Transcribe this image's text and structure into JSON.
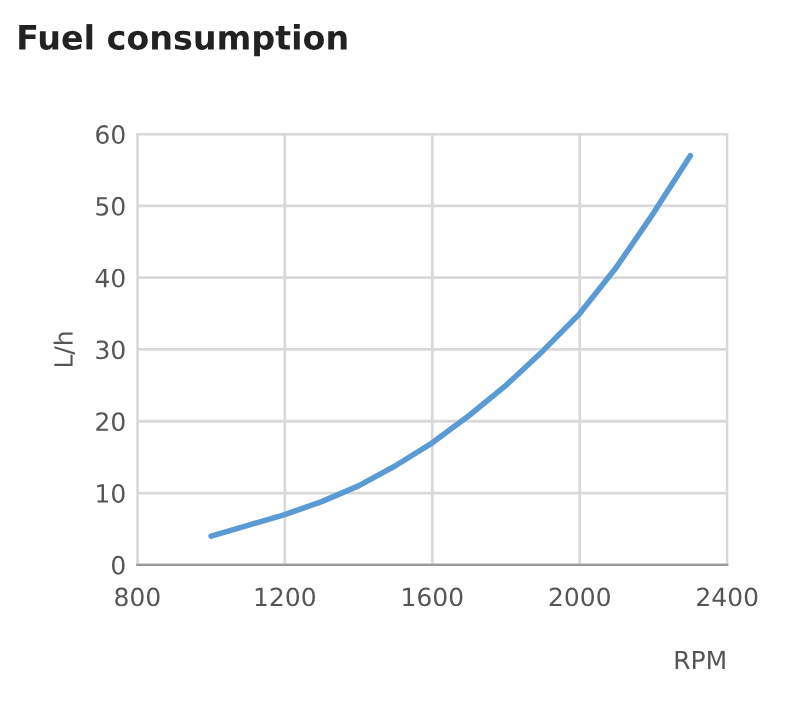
{
  "chart_data": {
    "type": "line",
    "title": "Fuel consumption",
    "xlabel": "RPM",
    "ylabel": "L/h",
    "x": [
      1000,
      1100,
      1200,
      1300,
      1400,
      1500,
      1600,
      1700,
      1800,
      1900,
      2000,
      2100,
      2200,
      2300
    ],
    "series": [
      {
        "color": "#5b9bd5",
        "values": [
          4,
          5.5,
          7,
          8.8,
          11,
          13.8,
          17,
          20.8,
          25,
          29.8,
          35,
          41.5,
          49,
          57
        ]
      }
    ],
    "xlim": [
      800,
      2400
    ],
    "xticks": [
      800,
      1200,
      1600,
      2000,
      2400
    ],
    "ylim": [
      0,
      60
    ],
    "yticks": [
      0,
      10,
      20,
      30,
      40,
      50,
      60
    ],
    "grid": true,
    "marker": "none",
    "line_style": "solid"
  }
}
